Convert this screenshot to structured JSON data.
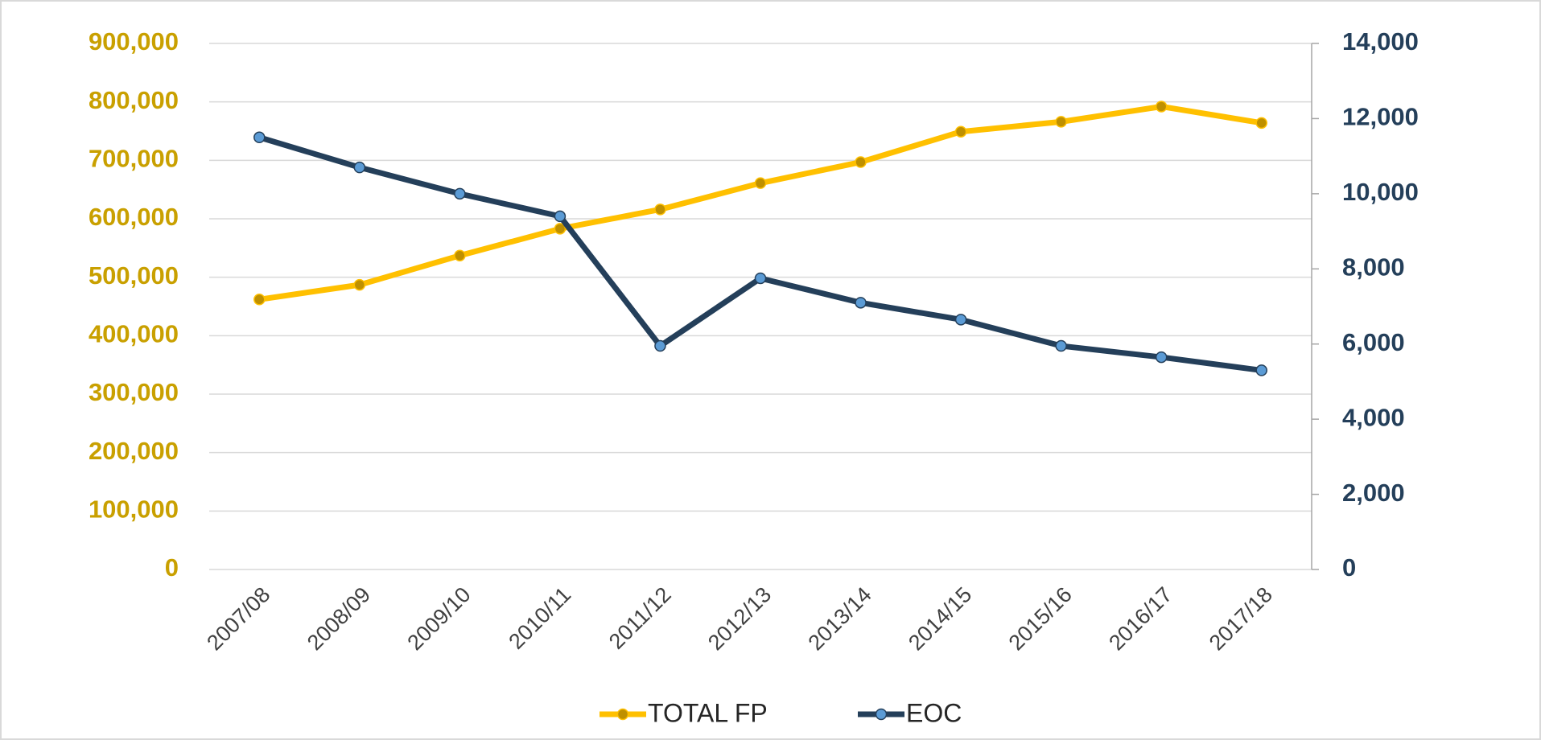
{
  "chart_data": {
    "type": "line",
    "categories": [
      "2007/08",
      "2008/09",
      "2009/10",
      "2010/11",
      "2011/12",
      "2012/13",
      "2013/14",
      "2014/15",
      "2015/16",
      "2016/17",
      "2017/18"
    ],
    "series": [
      {
        "name": "TOTAL FP",
        "color": "#ffc000",
        "marker_color": "#bf9000",
        "values": [
          462000,
          487000,
          537000,
          583000,
          616000,
          661000,
          697000,
          749000,
          766000,
          792000,
          764000
        ]
      },
      {
        "name": "EOC",
        "color": "#243f5a",
        "marker_color": "#5b9bd5",
        "axis": "y2",
        "values": [
          11500,
          10700,
          10000,
          9400,
          5950,
          7750,
          7100,
          6650,
          5950,
          5650,
          5300
        ]
      }
    ],
    "ylim": [
      0,
      900000
    ],
    "yticks": [
      0,
      {
        "value": 100000,
        "label": "100,000"
      },
      {
        "value": 200000,
        "label": "200,000"
      },
      {
        "value": 300000,
        "label": "300,000"
      },
      {
        "value": 400000,
        "label": "400,000"
      },
      {
        "value": 500000,
        "label": "500,000"
      },
      {
        "value": 600000,
        "label": "600,000"
      },
      {
        "value": 700000,
        "label": "700,000"
      },
      {
        "value": 800000,
        "label": "800,000"
      },
      {
        "value": 900000,
        "label": "900,000"
      }
    ],
    "y2lim": [
      0,
      14000
    ],
    "y2ticks": [
      0,
      {
        "value": 2000,
        "label": "2,000"
      },
      {
        "value": 4000,
        "label": "4,000"
      },
      {
        "value": 6000,
        "label": "6,000"
      },
      {
        "value": 8000,
        "label": "8,000"
      },
      {
        "value": 10000,
        "label": "10,000"
      },
      {
        "value": 12000,
        "label": "12,000"
      },
      {
        "value": 14000,
        "label": "14,000"
      }
    ],
    "grid": true,
    "legend": "bottom",
    "ytick_color": "#c9a000",
    "y2tick_color": "#243f5a"
  }
}
